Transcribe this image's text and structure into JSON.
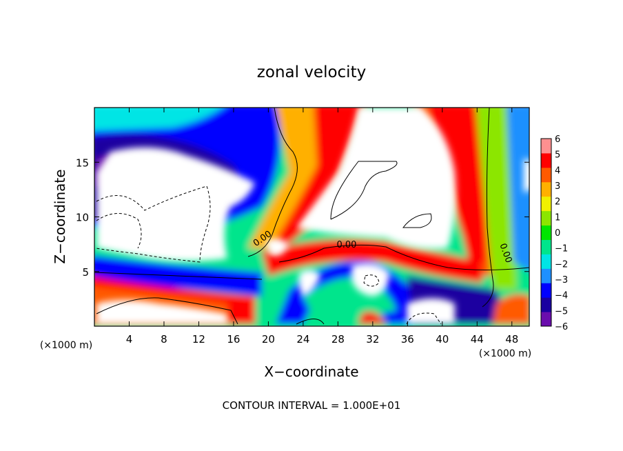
{
  "chart_data": {
    "type": "heatmap",
    "title": "zonal velocity",
    "xlabel": "X−coordinate",
    "ylabel": "Z−coordinate",
    "x_unit_left": "(×1000 m)",
    "x_unit_right": "(×1000 m)",
    "footer": "CONTOUR INTERVAL = 1.000E+01",
    "xlim": [
      0,
      50
    ],
    "ylim": [
      0,
      20
    ],
    "x_ticks": [
      4,
      8,
      12,
      16,
      20,
      24,
      28,
      32,
      36,
      40,
      44,
      48
    ],
    "y_ticks": [
      5,
      10,
      15
    ],
    "colorbar": {
      "ticks": [
        6,
        5,
        4,
        3,
        2,
        1,
        0,
        -1,
        -2,
        -3,
        -4,
        -5,
        -6
      ],
      "tick_labels": [
        "6",
        "5",
        "4",
        "3",
        "2",
        "1",
        "0",
        "−1",
        "−2",
        "−3",
        "−4",
        "−5",
        "−6"
      ],
      "range": [
        -6,
        6
      ],
      "colors": [
        "#6a0dad",
        "#1a00a0",
        "#0000ff",
        "#1e90ff",
        "#00e5e5",
        "#00e58c",
        "#00e600",
        "#8ce600",
        "#f0f000",
        "#ffb000",
        "#ff5a00",
        "#ff0000",
        "#ff9090"
      ]
    },
    "contour_labels": [
      {
        "text": "0.00",
        "x": 19.5,
        "y": 7.8
      },
      {
        "text": "0.00",
        "x": 29,
        "y": 7.2
      },
      {
        "text": "0.00",
        "x": 47,
        "y": 6.6
      }
    ],
    "field_saturated_color": "#ffffff"
  }
}
